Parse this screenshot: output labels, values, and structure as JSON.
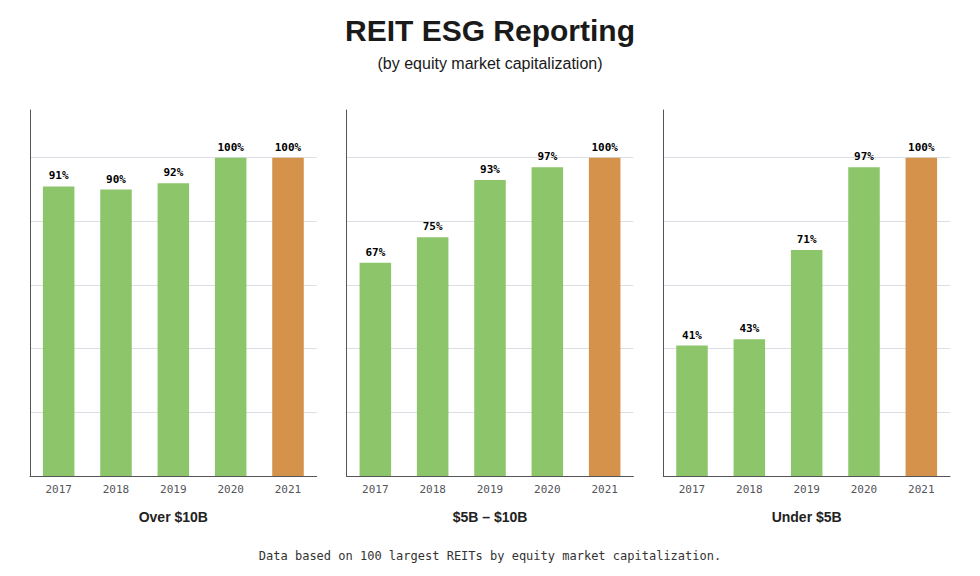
{
  "title": "REIT ESG Reporting",
  "subtitle": "(by equity market capitalization)",
  "annotations": [
    "Data based on 100 largest REITs by equity market capitalization."
  ],
  "chart_data": [
    {
      "type": "bar",
      "xlabel": "Over $10B",
      "categories": [
        "2017",
        "2018",
        "2019",
        "2020",
        "2021"
      ],
      "values": [
        91,
        90,
        92,
        100,
        100
      ],
      "value_labels": [
        "91%",
        "90%",
        "92%",
        "100%",
        "100%"
      ],
      "colors": [
        "#8DC66A",
        "#8DC66A",
        "#8DC66A",
        "#8DC66A",
        "#D4924A"
      ],
      "ylim": [
        0,
        115
      ],
      "yticks": [
        0,
        20,
        40,
        60,
        80,
        100
      ],
      "grid": true,
      "data_labels": true,
      "tick_labels": "x"
    },
    {
      "type": "bar",
      "xlabel": "$5B – $10B",
      "categories": [
        "2017",
        "2018",
        "2019",
        "2020",
        "2021"
      ],
      "values": [
        67,
        75,
        93,
        97,
        100
      ],
      "value_labels": [
        "67%",
        "75%",
        "93%",
        "97%",
        "100%"
      ],
      "colors": [
        "#8DC66A",
        "#8DC66A",
        "#8DC66A",
        "#8DC66A",
        "#D4924A"
      ],
      "ylim": [
        0,
        115
      ],
      "yticks": [
        0,
        20,
        40,
        60,
        80,
        100
      ],
      "grid": true,
      "data_labels": true,
      "tick_labels": "x"
    },
    {
      "type": "bar",
      "xlabel": "Under $5B",
      "categories": [
        "2017",
        "2018",
        "2019",
        "2020",
        "2021"
      ],
      "values": [
        41,
        43,
        71,
        97,
        100
      ],
      "value_labels": [
        "41%",
        "43%",
        "71%",
        "97%",
        "100%"
      ],
      "colors": [
        "#8DC66A",
        "#8DC66A",
        "#8DC66A",
        "#8DC66A",
        "#D4924A"
      ],
      "ylim": [
        0,
        115
      ],
      "yticks": [
        0,
        20,
        40,
        60,
        80,
        100
      ],
      "grid": true,
      "data_labels": true,
      "tick_labels": "x"
    }
  ]
}
